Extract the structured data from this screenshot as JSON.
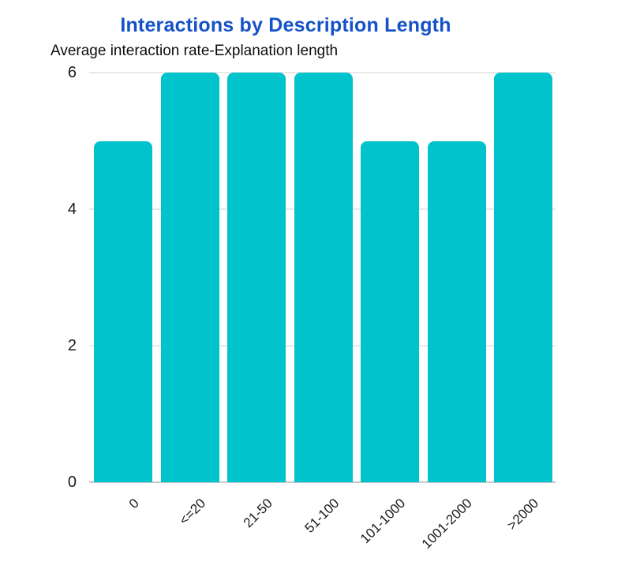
{
  "page": {
    "background_color": "#ffffff"
  },
  "header": {
    "title_color": "#1552c8",
    "subtitle_color": "#0d0d0d"
  },
  "chart_data": {
    "type": "bar",
    "title": "Interactions by Description Length",
    "subtitle": "Average interaction rate-Explanation length",
    "categories": [
      "0",
      "<=20",
      "21-50",
      "51-100",
      "101-1000",
      "1001-2000",
      ">2000"
    ],
    "values": [
      5,
      6,
      6,
      6,
      5,
      5,
      6
    ],
    "xlabel": "",
    "ylabel": "",
    "ylim": [
      0,
      6
    ],
    "yticks": [
      0,
      2,
      4,
      6
    ],
    "x_tick_rotation": -45,
    "grid": true,
    "legend": false,
    "bar_color": "#00c3cb",
    "grid_color": "#e8e8e8",
    "axis_line_color": "#c8c8c8",
    "tick_label_color": "#1a1a1a"
  }
}
